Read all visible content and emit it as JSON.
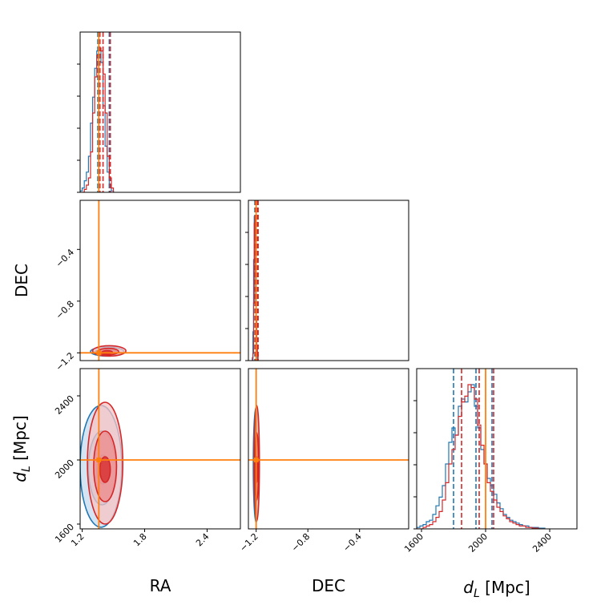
{
  "colors": {
    "series_blue": "#1f77b4",
    "series_red": "#d62728",
    "truth": "#ff7f0e",
    "blue_fill": [
      "#c6dbef",
      "#9ecae1",
      "#3182bd"
    ],
    "red_fill": [
      "#f7c4c4",
      "#ee8a8a",
      "#d62728"
    ]
  },
  "chart_data": {
    "type": "corner",
    "parameters": [
      {
        "key": "RA",
        "label": "RA",
        "range": [
          1.18,
          2.72
        ],
        "ticks": [
          "1.2",
          "1.8",
          "2.4"
        ],
        "tick_values": [
          1.2,
          1.8,
          2.4
        ]
      },
      {
        "key": "DEC",
        "label": "DEC",
        "range": [
          -1.26,
          -0.02
        ],
        "ticks": [
          "−1.2",
          "−0.8",
          "−0.4"
        ],
        "tick_values": [
          -1.2,
          -0.8,
          -0.4
        ]
      },
      {
        "key": "dL",
        "label_main": "d",
        "label_sub": "L",
        "label_unit": " [Mpc]",
        "range": [
          1570,
          2570
        ],
        "ticks": [
          "1600",
          "2000",
          "2400"
        ],
        "tick_values": [
          1600,
          2000,
          2400
        ]
      }
    ],
    "truth": {
      "RA": 1.36,
      "DEC": -1.2,
      "dL": 2000
    },
    "series": [
      {
        "color_key": "series_blue",
        "quantiles": {
          "RA": [
            1.35,
            1.37,
            1.46
          ],
          "DEC": [
            -1.21,
            -1.2,
            -1.19
          ],
          "dL": [
            1800,
            1940,
            2040
          ]
        },
        "hist": {
          "RA": {
            "x0": 1.18,
            "dx": 0.02,
            "counts": [
              1,
              3,
              8,
              14,
              25,
              48,
              66,
              86,
              98,
              100,
              90,
              60,
              32,
              14,
              5,
              1
            ]
          },
          "DEC": {
            "x0": -1.23,
            "dx": 0.005,
            "counts": [
              2,
              20,
              70,
              100,
              85,
              40,
              12,
              3
            ]
          },
          "dL": {
            "x0": 1570,
            "dx": 20,
            "counts": [
              1,
              2,
              3,
              5,
              6,
              10,
              16,
              22,
              30,
              45,
              60,
              70,
              65,
              85,
              90,
              88,
              95,
              100,
              85,
              70,
              55,
              45,
              35,
              30,
              24,
              18,
              14,
              10,
              8,
              6,
              5,
              4,
              3,
              2,
              2,
              1,
              1,
              1,
              0.5,
              0.5
            ]
          }
        },
        "contours": {
          "RA-DEC": [
            {
              "level": 1,
              "cx": 1.44,
              "cy": -1.19,
              "rx": 0.16,
              "ry": 0.035
            },
            {
              "level": 2,
              "cx": 1.43,
              "cy": -1.195,
              "rx": 0.11,
              "ry": 0.02
            },
            {
              "level": 3,
              "cx": 1.42,
              "cy": -1.2,
              "rx": 0.05,
              "ry": 0.01
            }
          ],
          "RA-dL": [
            {
              "level": 1,
              "cx": 1.38,
              "cy": 1960,
              "rx": 0.2,
              "ry": 380
            },
            {
              "level": 2,
              "cx": 1.39,
              "cy": 1950,
              "rx": 0.13,
              "ry": 230
            },
            {
              "level": 3,
              "cx": 1.4,
              "cy": 1940,
              "rx": 0.06,
              "ry": 90
            }
          ],
          "DEC-dL": [
            {
              "level": 1,
              "cx": -1.2,
              "cy": 1970,
              "rx": 0.022,
              "ry": 360
            },
            {
              "level": 2,
              "cx": -1.2,
              "cy": 1950,
              "rx": 0.015,
              "ry": 220
            },
            {
              "level": 3,
              "cx": -1.2,
              "cy": 1940,
              "rx": 0.007,
              "ry": 90
            }
          ]
        }
      },
      {
        "color_key": "series_red",
        "quantiles": {
          "RA": [
            1.37,
            1.4,
            1.47
          ],
          "DEC": [
            -1.205,
            -1.195,
            -1.185
          ],
          "dL": [
            1850,
            1960,
            2050
          ]
        },
        "hist": {
          "RA": {
            "x0": 1.2,
            "dx": 0.02,
            "counts": [
              0,
              2,
              5,
              10,
              28,
              55,
              80,
              95,
              100,
              98,
              82,
              55,
              25,
              10,
              3
            ]
          },
          "DEC": {
            "x0": -1.225,
            "dx": 0.005,
            "counts": [
              5,
              40,
              95,
              100,
              60,
              30,
              10,
              4
            ]
          },
          "dL": {
            "x0": 1570,
            "dx": 20,
            "counts": [
              0,
              0,
              1,
              2,
              3,
              5,
              8,
              12,
              20,
              32,
              45,
              55,
              65,
              78,
              88,
              92,
              100,
              98,
              90,
              72,
              58,
              45,
              32,
              26,
              20,
              15,
              12,
              9,
              7,
              5,
              4,
              3,
              2,
              2,
              1,
              1,
              0.5,
              0.5,
              0,
              0
            ]
          }
        },
        "contours": {
          "RA-DEC": [
            {
              "level": 1,
              "cx": 1.46,
              "cy": -1.185,
              "rx": 0.16,
              "ry": 0.04
            },
            {
              "level": 2,
              "cx": 1.45,
              "cy": -1.19,
              "rx": 0.1,
              "ry": 0.025
            },
            {
              "level": 3,
              "cx": 1.44,
              "cy": -1.195,
              "rx": 0.05,
              "ry": 0.012
            }
          ],
          "RA-dL": [
            {
              "level": 1,
              "cx": 1.42,
              "cy": 1980,
              "rx": 0.17,
              "ry": 380
            },
            {
              "level": 2,
              "cx": 1.42,
              "cy": 1960,
              "rx": 0.11,
              "ry": 220
            },
            {
              "level": 3,
              "cx": 1.42,
              "cy": 1940,
              "rx": 0.05,
              "ry": 80
            }
          ],
          "DEC-dL": [
            {
              "level": 1,
              "cx": -1.195,
              "cy": 1980,
              "rx": 0.02,
              "ry": 360
            },
            {
              "level": 2,
              "cx": -1.195,
              "cy": 1960,
              "rx": 0.013,
              "ry": 210
            },
            {
              "level": 3,
              "cx": -1.195,
              "cy": 1940,
              "rx": 0.006,
              "ry": 80
            }
          ]
        }
      }
    ]
  }
}
